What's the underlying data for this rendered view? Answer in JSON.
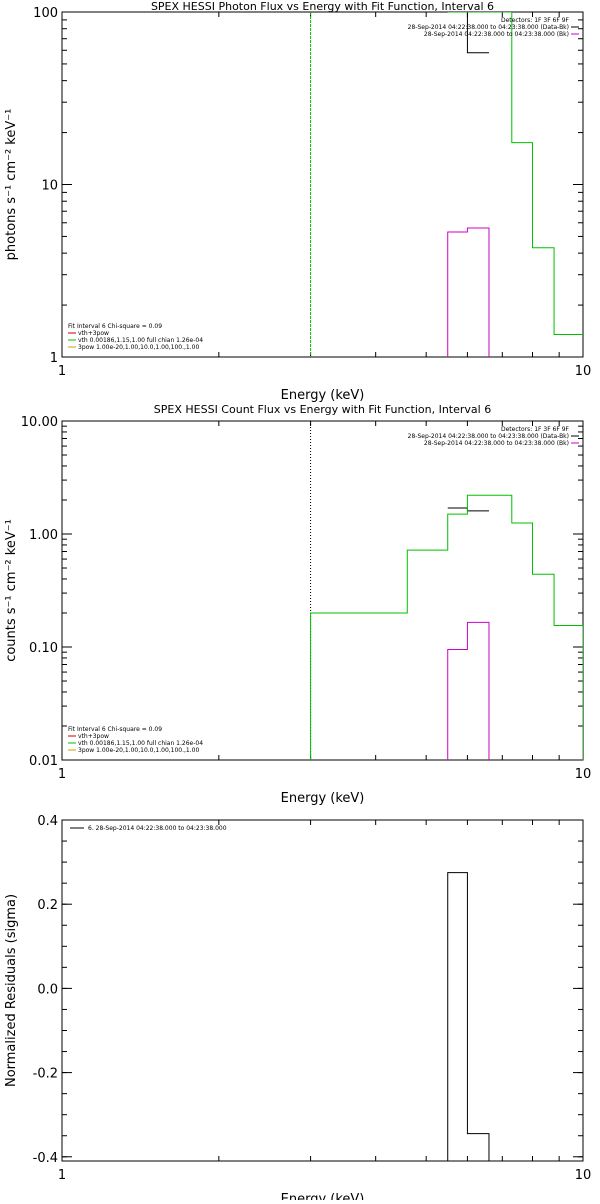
{
  "chart_data": [
    {
      "type": "line",
      "title": "SPEX HESSI Photon Flux vs Energy with Fit Function, Interval 6",
      "xlabel": "Energy (keV)",
      "ylabel": "photons s⁻¹ cm⁻² keV⁻¹",
      "xscale": "log",
      "yscale": "log",
      "xlim": [
        1,
        10
      ],
      "ylim": [
        1,
        100
      ],
      "xticks": [
        {
          "v": 1,
          "label": "1"
        },
        {
          "v": 10,
          "label": "10"
        }
      ],
      "yticks": [
        {
          "v": 1,
          "label": "1"
        },
        {
          "v": 10,
          "label": "10"
        },
        {
          "v": 100,
          "label": "100"
        }
      ],
      "grid": false,
      "vline": {
        "x": 3.0,
        "color": "#00c000",
        "style": "dashed"
      },
      "legend_top": [
        {
          "text": "Detectors: 1F 3F 6F 9F",
          "color": ""
        },
        {
          "text": "28-Sep-2014 04:22:38.000 to 04:23:38.000 (Data-Bk)",
          "color": "#000000"
        },
        {
          "text": "28-Sep-2014 04:22:38.000 to 04:23:38.000 (Bk)",
          "color": "#cc00cc"
        }
      ],
      "legend_bottom": [
        {
          "text": "Fit Interval 6   Chi-square = 0.09",
          "color": ""
        },
        {
          "text": "vth+3pow",
          "color": "#cc0000"
        },
        {
          "text": "vth 0.00186,1.15,1.00  full chian 1.26e-04",
          "color": "#00c000"
        },
        {
          "text": "3pow 1.00e-20,1.00,10.0,1.00,100.,1.00",
          "color": "#d0a000"
        }
      ],
      "series": [
        {
          "color": "#000000",
          "edges": [
            5.5,
            6.0,
            6.6
          ],
          "values": [
            100,
            58
          ]
        },
        {
          "color": "#cc00cc",
          "edges": [
            5.5,
            6.0,
            6.6
          ],
          "values": [
            5.3,
            5.6
          ],
          "drop": true
        },
        {
          "color": "#00c000",
          "edges": [
            5.5,
            6.0,
            6.6,
            7.3,
            8.0,
            8.8,
            10.0
          ],
          "values": [
            100,
            100,
            100,
            17.5,
            4.3,
            1.35
          ]
        }
      ]
    },
    {
      "type": "line",
      "title": "SPEX HESSI Count Flux vs Energy with Fit Function, Interval 6",
      "xlabel": "Energy (keV)",
      "ylabel": "counts s⁻¹ cm⁻² keV⁻¹",
      "xscale": "log",
      "yscale": "log",
      "xlim": [
        1,
        10
      ],
      "ylim": [
        0.01,
        10
      ],
      "xticks": [
        {
          "v": 1,
          "label": "1"
        },
        {
          "v": 10,
          "label": "10"
        }
      ],
      "yticks": [
        {
          "v": 0.01,
          "label": "0.01"
        },
        {
          "v": 0.1,
          "label": "0.10"
        },
        {
          "v": 1,
          "label": "1.00"
        },
        {
          "v": 10,
          "label": "10.00"
        }
      ],
      "grid": false,
      "vline": {
        "x": 3.0,
        "color": "#000000",
        "style": "dotted"
      },
      "legend_top": [
        {
          "text": "Detectors: 1F 3F 6F 9F",
          "color": ""
        },
        {
          "text": "28-Sep-2014 04:22:38.000 to 04:23:38.000 (Data-Bk)",
          "color": "#000000"
        },
        {
          "text": "28-Sep-2014 04:22:38.000 to 04:23:38.000 (Bk)",
          "color": "#cc00cc"
        }
      ],
      "legend_bottom": [
        {
          "text": "Fit Interval 6   Chi-square = 0.09",
          "color": ""
        },
        {
          "text": "vth+3pow",
          "color": "#cc0000"
        },
        {
          "text": "vth 0.00186,1.15,1.00  full chian 1.26e-04",
          "color": "#00c000"
        },
        {
          "text": "3pow 1.00e-20,1.00,10.0,1.00,100.,1.00",
          "color": "#d0a000"
        }
      ],
      "series": [
        {
          "color": "#000000",
          "edges": [
            5.5,
            6.0,
            6.6
          ],
          "values": [
            1.7,
            1.6
          ]
        },
        {
          "color": "#cc00cc",
          "edges": [
            5.5,
            6.0,
            6.6
          ],
          "values": [
            0.095,
            0.165
          ],
          "drop": true
        },
        {
          "color": "#00c000",
          "edges": [
            3.0,
            3.6,
            4.6,
            5.5,
            6.0,
            6.6,
            7.3,
            8.0,
            8.8,
            10.0
          ],
          "values": [
            0.2,
            0.2,
            0.72,
            1.5,
            2.2,
            2.2,
            1.25,
            0.44,
            0.155
          ],
          "drop": true
        }
      ]
    },
    {
      "type": "line",
      "title": "",
      "xlabel": "Energy (keV)",
      "ylabel": "Normalized Residuals (sigma)",
      "xscale": "log",
      "yscale": "linear",
      "xlim": [
        1,
        10
      ],
      "ylim": [
        -0.41,
        0.4
      ],
      "xticks": [
        {
          "v": 1,
          "label": "1"
        },
        {
          "v": 10,
          "label": "10"
        }
      ],
      "yticks": [
        {
          "v": -0.4,
          "label": "-0.4"
        },
        {
          "v": -0.2,
          "label": "-0.2"
        },
        {
          "v": 0,
          "label": "0.0"
        },
        {
          "v": 0.2,
          "label": "0.2"
        },
        {
          "v": 0.4,
          "label": "0.4"
        }
      ],
      "grid": false,
      "legend_top": [
        {
          "text": "6. 28-Sep-2014 04:22:38.000 to 04:23:38.000",
          "color": "#000000"
        }
      ],
      "legend_bottom": [],
      "series": [
        {
          "color": "#000000",
          "edges": [
            5.5,
            6.0,
            6.6
          ],
          "values": [
            0.275,
            -0.345
          ],
          "drop": true
        }
      ]
    }
  ]
}
